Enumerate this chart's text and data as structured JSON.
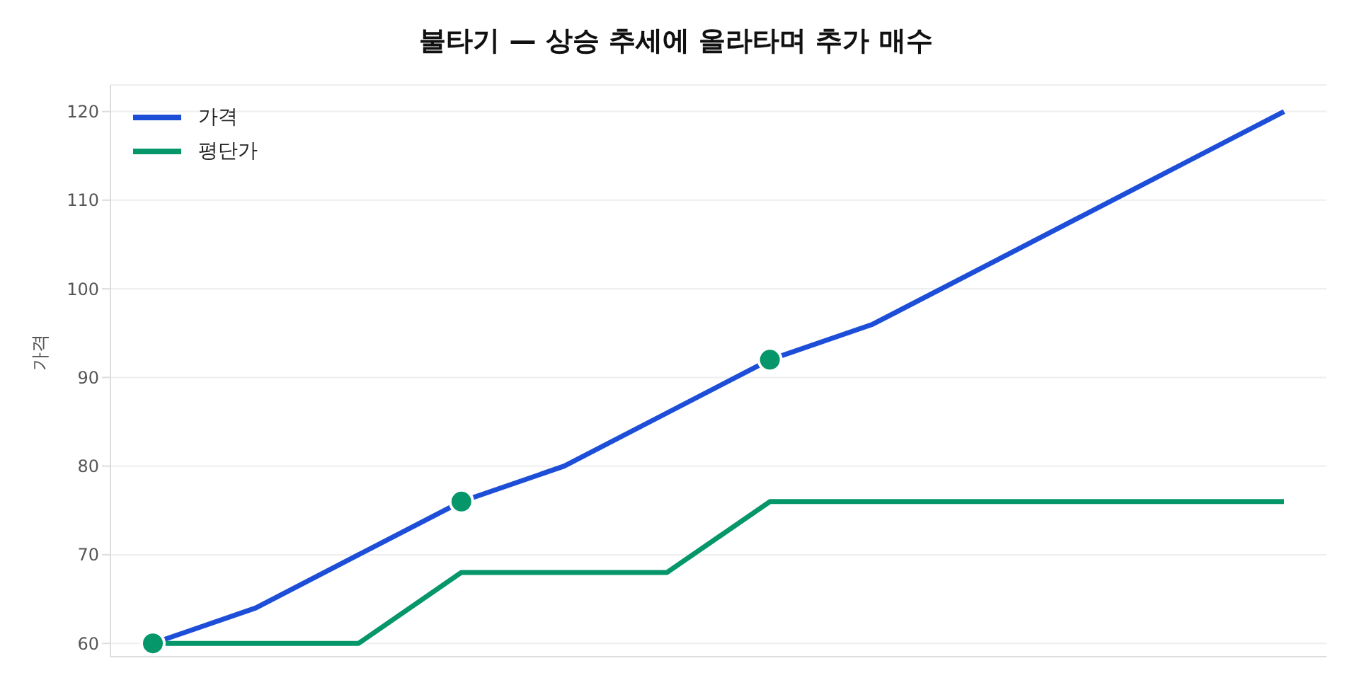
{
  "chart_data": {
    "type": "line",
    "title": "불타기 — 상승 추세에 올라타며 추가 매수",
    "ylabel": "가격",
    "categories": [
      null,
      null,
      null,
      null,
      null,
      null,
      null,
      null,
      null,
      null,
      null,
      null
    ],
    "series": [
      {
        "name": "가격",
        "color": "#1d4ed8",
        "values": [
          60,
          64,
          70,
          76,
          80,
          86,
          92,
          96,
          102,
          108,
          114,
          120
        ]
      },
      {
        "name": "평단가",
        "color": "#059669",
        "values": [
          60,
          60,
          60,
          68,
          68,
          68,
          76,
          76,
          76,
          76,
          76,
          76
        ]
      },
      {
        "type": "scatter",
        "marker": "circle",
        "color": "#059669",
        "values": [
          60,
          null,
          null,
          76,
          null,
          null,
          92,
          null,
          null,
          null,
          null,
          null
        ]
      }
    ],
    "ylim": [
      58.5,
      123
    ],
    "yticks": [
      60,
      70,
      80,
      90,
      100,
      110,
      120
    ],
    "grid": "y",
    "legend": "top left",
    "marker": "none",
    "line_style": "solid"
  }
}
